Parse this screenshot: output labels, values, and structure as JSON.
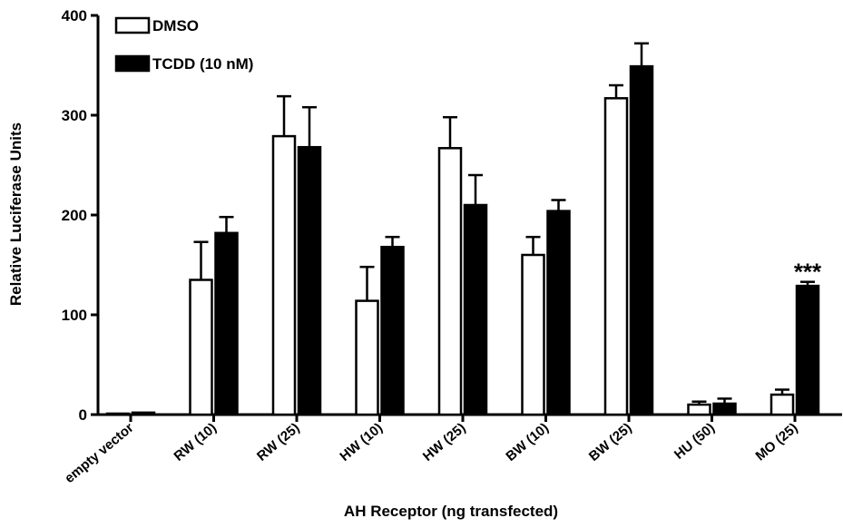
{
  "chart_data": {
    "type": "bar",
    "xlabel": "AH Receptor (ng transfected)",
    "ylabel": "Relative Luciferase Units",
    "ylim": [
      0,
      400
    ],
    "yticks": [
      0,
      100,
      200,
      300,
      400
    ],
    "categories": [
      "empty vector",
      "RW (10)",
      "RW (25)",
      "HW (10)",
      "HW (25)",
      "BW (10)",
      "BW (25)",
      "HU (50)",
      "MO (25)"
    ],
    "series": [
      {
        "name": "DMSO",
        "fill": "#ffffff",
        "values": [
          1,
          135,
          279,
          114,
          267,
          160,
          317,
          10,
          20
        ],
        "errors": [
          0,
          38,
          40,
          34,
          31,
          18,
          13,
          3,
          5
        ]
      },
      {
        "name": "TCDD (10 nM)",
        "fill": "#000000",
        "values": [
          2,
          182,
          268,
          168,
          210,
          204,
          349,
          11,
          129
        ],
        "errors": [
          0,
          16,
          40,
          10,
          30,
          11,
          23,
          5,
          4
        ]
      }
    ],
    "annotations": [
      {
        "text": "***",
        "category": "MO (25)"
      }
    ],
    "legend_position": "top-left",
    "grid": false
  }
}
